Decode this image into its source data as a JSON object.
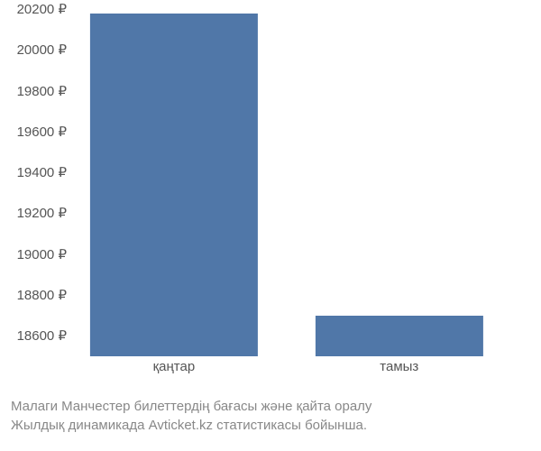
{
  "chart": {
    "type": "bar",
    "categories": [
      "қаңтар",
      "тамыз"
    ],
    "values": [
      20180,
      18700
    ],
    "bar_color": "#5077a8",
    "background_color": "#ffffff",
    "ymin": 18500,
    "ymax": 20200,
    "ytick_values": [
      18600,
      18800,
      19000,
      19200,
      19400,
      19600,
      19800,
      20000,
      20200
    ],
    "ytick_labels": [
      "18600 ₽",
      "18800 ₽",
      "19000 ₽",
      "19200 ₽",
      "19400 ₽",
      "19600 ₽",
      "19800 ₽",
      "20000 ₽",
      "20200 ₽"
    ],
    "bar_positions_pct": [
      21,
      72
    ],
    "bar_width_pct": 38,
    "axis_label_color": "#555555",
    "axis_label_fontsize": 15,
    "caption_color": "#888888",
    "caption_fontsize": 15
  },
  "caption": {
    "line1": "Малаги Манчестер билеттердің бағасы және қайта оралу",
    "line2": "Жылдық динамикада Avticket.kz статистикасы бойынша."
  }
}
